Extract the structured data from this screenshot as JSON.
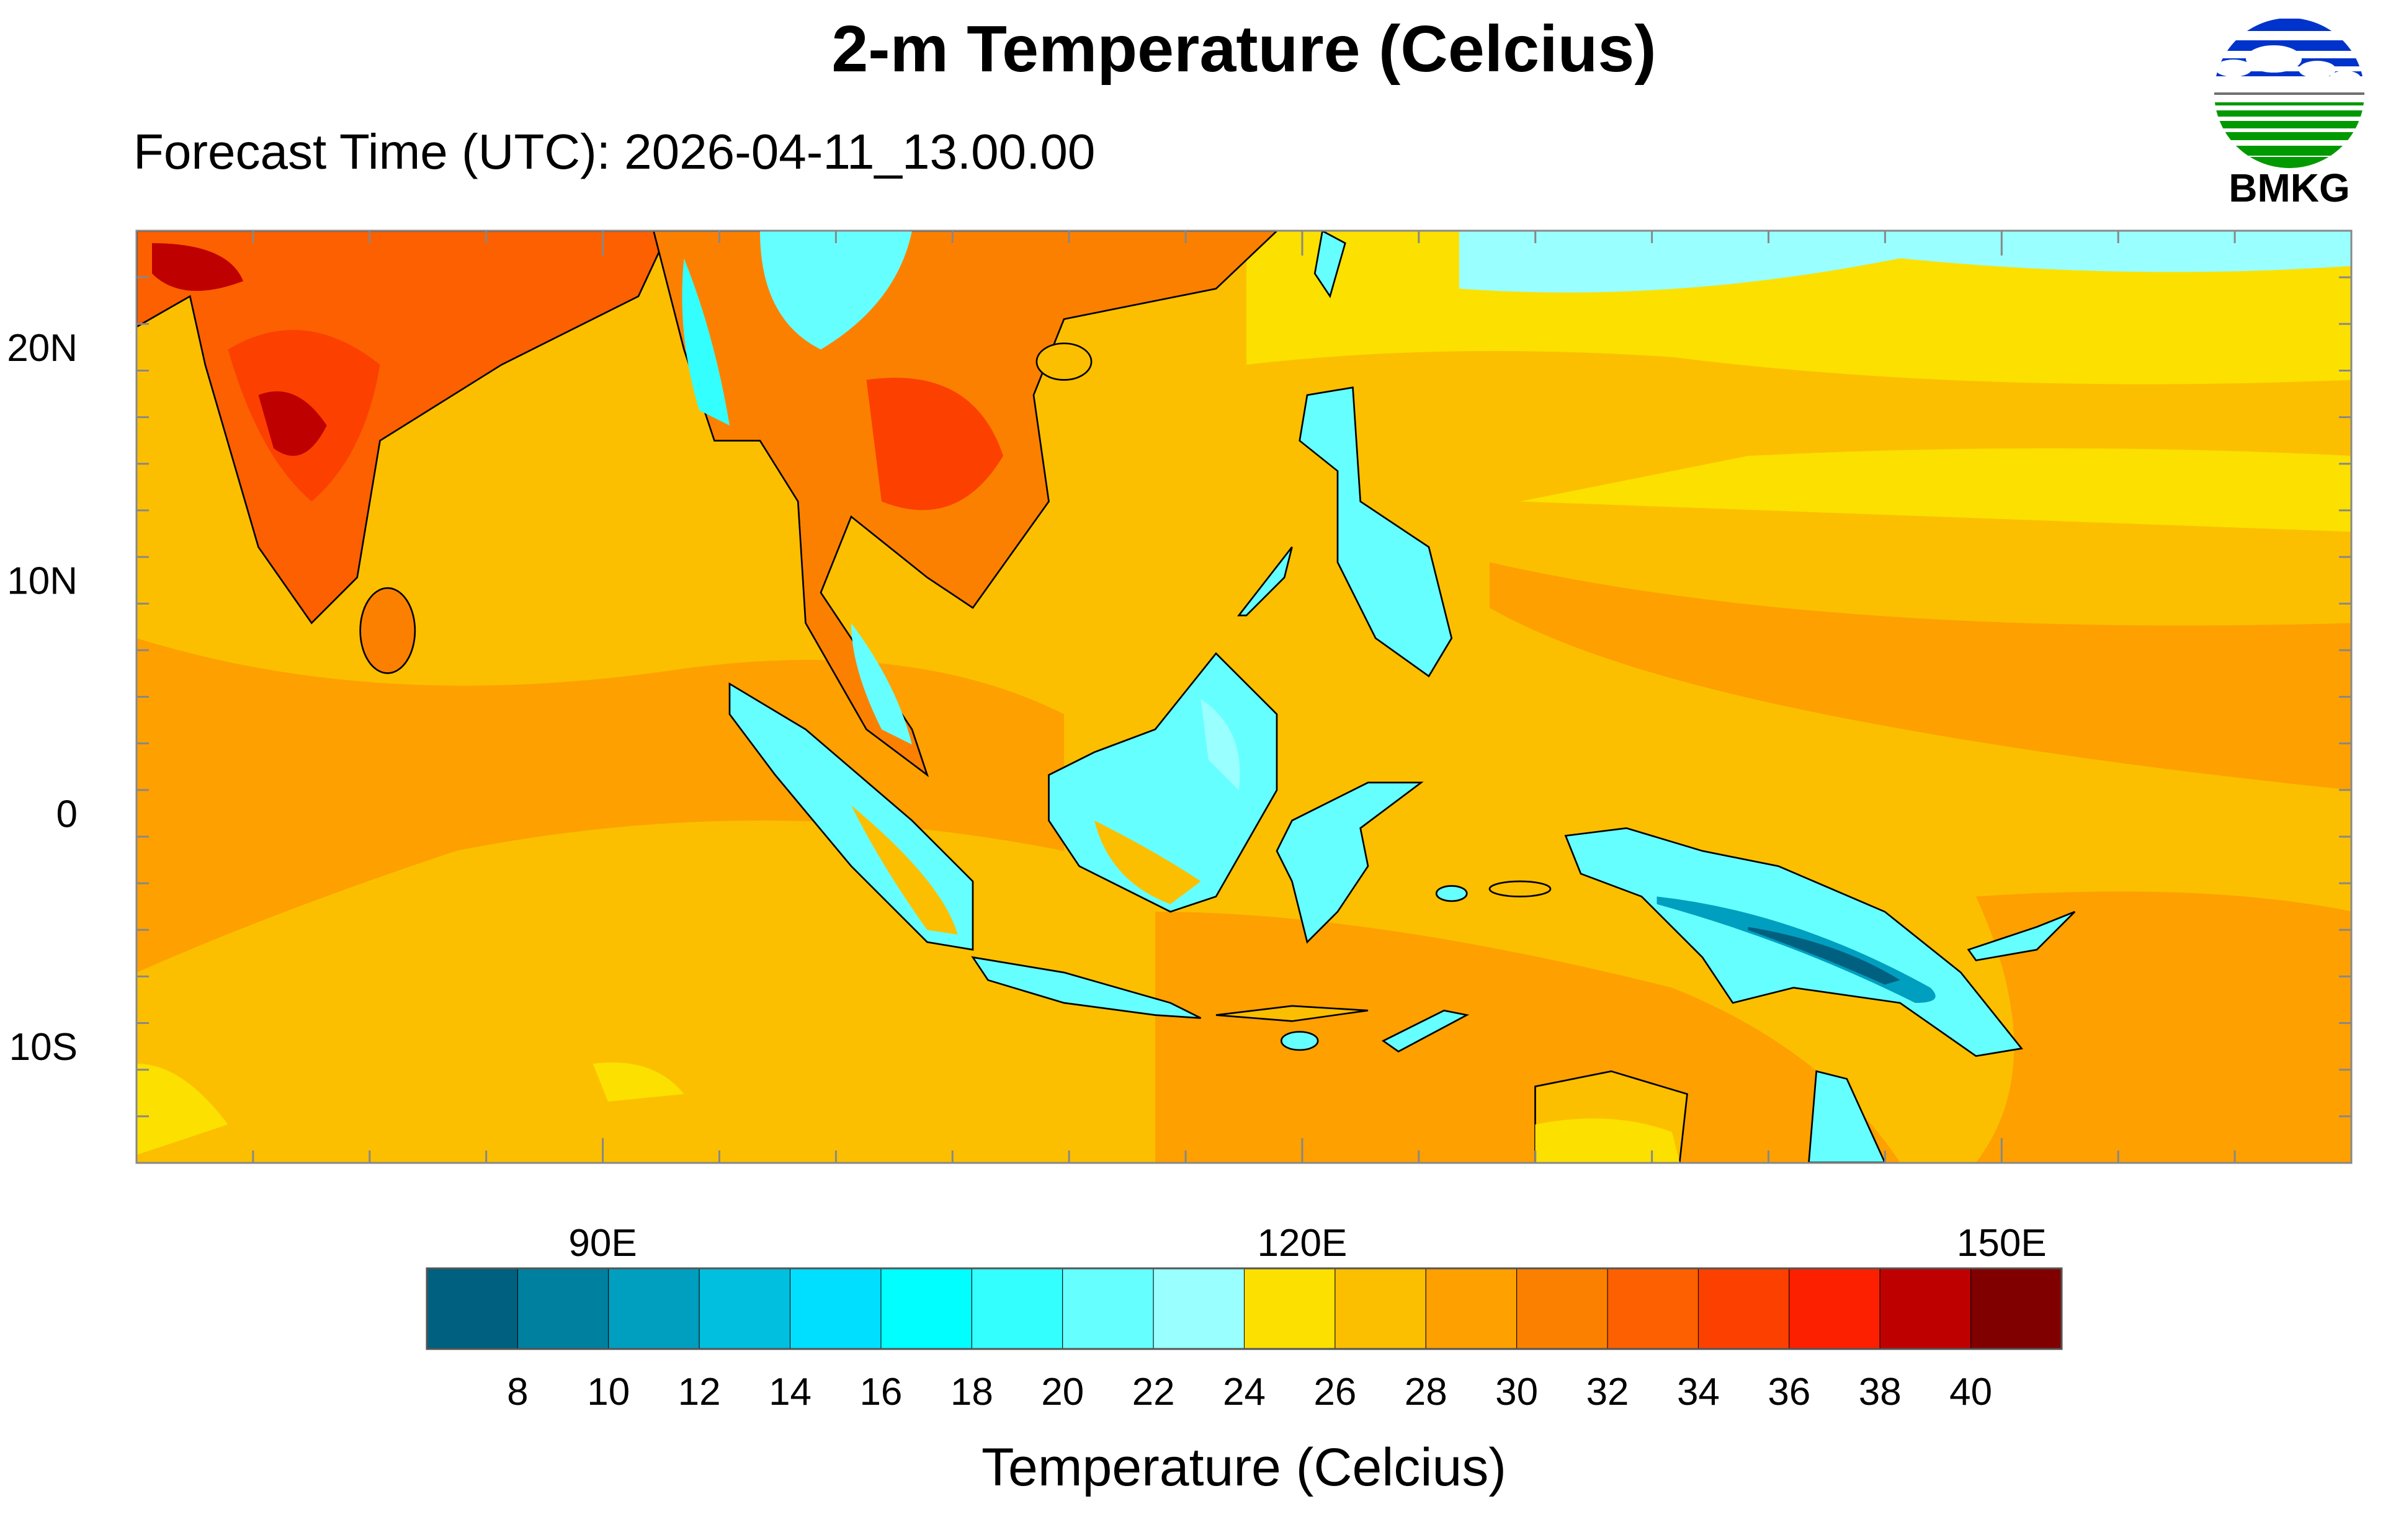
{
  "title": "2-m Temperature (Celcius)",
  "subtitle": "Forecast Time (UTC): 2026-04-11_13.00.00",
  "logo": {
    "text": "BMKG",
    "colors": {
      "sky": "#0033cc",
      "land": "#009900",
      "horizon": "#707070"
    }
  },
  "map": {
    "lon_range": [
      70,
      165
    ],
    "lat_range": [
      -15,
      25
    ],
    "lon_labels": [
      {
        "value": 90,
        "label": "90E"
      },
      {
        "value": 120,
        "label": "120E"
      },
      {
        "value": 150,
        "label": "150E"
      }
    ],
    "lat_labels": [
      {
        "value": 20,
        "label": "20N"
      },
      {
        "value": 10,
        "label": "10N"
      },
      {
        "value": 0,
        "label": "0"
      },
      {
        "value": -10,
        "label": "10S"
      }
    ]
  },
  "chart_data": {
    "type": "heatmap",
    "title": "2-m Temperature (Celcius)",
    "subtitle": "Forecast Time (UTC): 2026-04-11_13.00.00",
    "variable": "2-m Temperature",
    "units": "Celcius",
    "colorbar": {
      "label": "Temperature (Celcius)",
      "levels": [
        8,
        10,
        12,
        14,
        16,
        18,
        20,
        22,
        24,
        26,
        28,
        30,
        32,
        34,
        36,
        38,
        40
      ],
      "colors": [
        "#00607f",
        "#00809f",
        "#009fbf",
        "#00bfdf",
        "#00dfff",
        "#00ffff",
        "#33ffff",
        "#66ffff",
        "#99ffff",
        "#fbe000",
        "#fbbf00",
        "#fda000",
        "#fc8000",
        "#fc6000",
        "#fc4000",
        "#fc2000",
        "#bf0000",
        "#800000"
      ]
    }
  }
}
